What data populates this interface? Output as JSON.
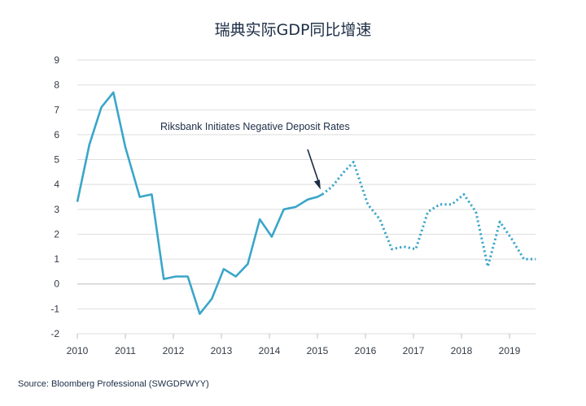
{
  "chart_data": {
    "type": "line",
    "title": "瑞典实际GDP同比增速",
    "xlabel": "",
    "ylabel": "",
    "xlim": [
      2010,
      2019.6
    ],
    "ylim": [
      -2,
      9
    ],
    "x_ticks": [
      "2010",
      "2011",
      "2012",
      "2013",
      "2014",
      "2015",
      "2016",
      "2017",
      "2018",
      "2019"
    ],
    "y_ticks": [
      "-2",
      "-1",
      "0",
      "1",
      "2",
      "3",
      "4",
      "5",
      "6",
      "7",
      "8",
      "9"
    ],
    "grid": "horizontal",
    "annotation": {
      "text": "Riksbank Initiates Negative Deposit Rates",
      "x": 2015.1,
      "y": 3.6
    },
    "series": [
      {
        "style": "solid",
        "color": "#3aa6c9",
        "points": [
          [
            2010.0,
            3.3
          ],
          [
            2010.25,
            5.6
          ],
          [
            2010.5,
            7.1
          ],
          [
            2010.75,
            7.7
          ],
          [
            2011.0,
            5.5
          ],
          [
            2011.3,
            3.5
          ],
          [
            2011.55,
            3.6
          ],
          [
            2011.8,
            0.2
          ],
          [
            2012.05,
            0.3
          ],
          [
            2012.3,
            0.3
          ],
          [
            2012.55,
            -1.2
          ],
          [
            2012.8,
            -0.6
          ],
          [
            2013.05,
            0.6
          ],
          [
            2013.3,
            0.3
          ],
          [
            2013.55,
            0.8
          ],
          [
            2013.8,
            2.6
          ],
          [
            2014.05,
            1.9
          ],
          [
            2014.3,
            3.0
          ],
          [
            2014.55,
            3.1
          ],
          [
            2014.8,
            3.4
          ],
          [
            2015.0,
            3.5
          ],
          [
            2015.1,
            3.6
          ]
        ]
      },
      {
        "style": "dotted",
        "color": "#3aa6c9",
        "points": [
          [
            2015.1,
            3.6
          ],
          [
            2015.3,
            3.9
          ],
          [
            2015.55,
            4.5
          ],
          [
            2015.75,
            4.9
          ],
          [
            2016.05,
            3.2
          ],
          [
            2016.3,
            2.6
          ],
          [
            2016.55,
            1.4
          ],
          [
            2016.8,
            1.5
          ],
          [
            2017.05,
            1.4
          ],
          [
            2017.3,
            2.9
          ],
          [
            2017.55,
            3.2
          ],
          [
            2017.8,
            3.2
          ],
          [
            2018.05,
            3.6
          ],
          [
            2018.3,
            2.9
          ],
          [
            2018.55,
            0.7
          ],
          [
            2018.8,
            2.5
          ],
          [
            2019.05,
            1.8
          ],
          [
            2019.3,
            1.0
          ],
          [
            2019.55,
            1.0
          ]
        ]
      }
    ]
  },
  "source": "Source: Bloomberg Professional (SWGDPWYY)"
}
